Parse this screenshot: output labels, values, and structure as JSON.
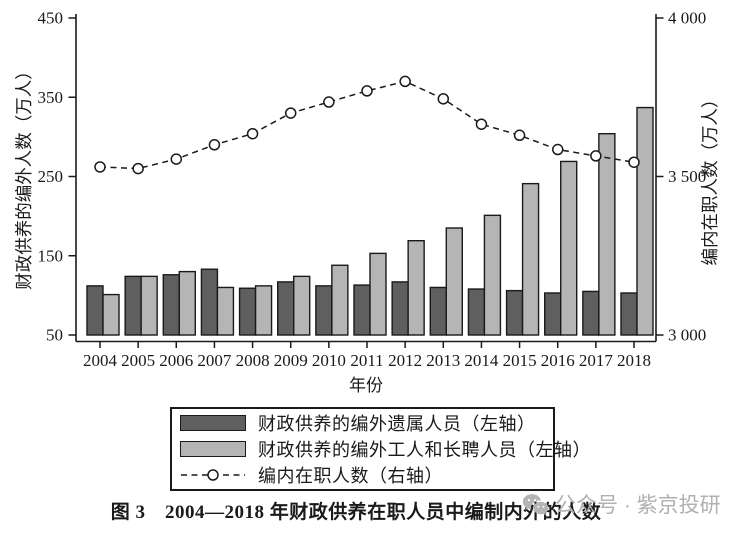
{
  "figure_caption": "图 3　2004—2018 年财政供养在职人员中编制内外的人数",
  "watermark": {
    "icon": "wechat-icon",
    "text": "公众号 · 紫京投研"
  },
  "colors": {
    "axis": "#1a1a1a",
    "background": "#ffffff",
    "watermark": "#b0b0b0"
  },
  "chart_data": {
    "type": "bar",
    "subtype": "grouped bars (left axis) with dashed line overlay (right axis)",
    "categories": [
      "2004",
      "2005",
      "2006",
      "2007",
      "2008",
      "2009",
      "2010",
      "2011",
      "2012",
      "2013",
      "2014",
      "2015",
      "2016",
      "2017",
      "2018"
    ],
    "xlabel": "年份",
    "left_axis": {
      "label": "财政供养的编外人数（万人）",
      "range": [
        50,
        450
      ],
      "ticks": [
        50,
        150,
        250,
        350,
        450
      ]
    },
    "right_axis": {
      "label": "编内在职人数（万人）",
      "range": [
        3000,
        4000
      ],
      "ticks": [
        {
          "value": 3000,
          "label": "3 000"
        },
        {
          "value": 3500,
          "label": "3 500"
        },
        {
          "value": 4000,
          "label": "4 000"
        }
      ]
    },
    "series": [
      {
        "name": "财政供养的编外遗属人员（左轴）",
        "type": "bar",
        "axis": "left",
        "color": "#5f5f5f",
        "values": [
          112,
          124,
          126,
          133,
          109,
          117,
          112,
          113,
          117,
          110,
          108,
          106,
          103,
          105,
          103
        ]
      },
      {
        "name": "财政供养的编外工人和长聘人员（左轴）",
        "type": "bar",
        "axis": "left",
        "color": "#b5b5b5",
        "values": [
          101,
          124,
          130,
          110,
          112,
          124,
          138,
          153,
          169,
          185,
          201,
          241,
          269,
          304,
          337
        ]
      },
      {
        "name": "编内在职人数（右轴）",
        "type": "line",
        "axis": "right",
        "line_style": "dashed",
        "marker": "open-circle",
        "color": "#1a1a1a",
        "values": [
          3530,
          3525,
          3555,
          3600,
          3635,
          3700,
          3735,
          3770,
          3800,
          3745,
          3665,
          3630,
          3585,
          3565,
          3545
        ]
      }
    ],
    "legend_position": "bottom-boxed",
    "grid": false
  }
}
